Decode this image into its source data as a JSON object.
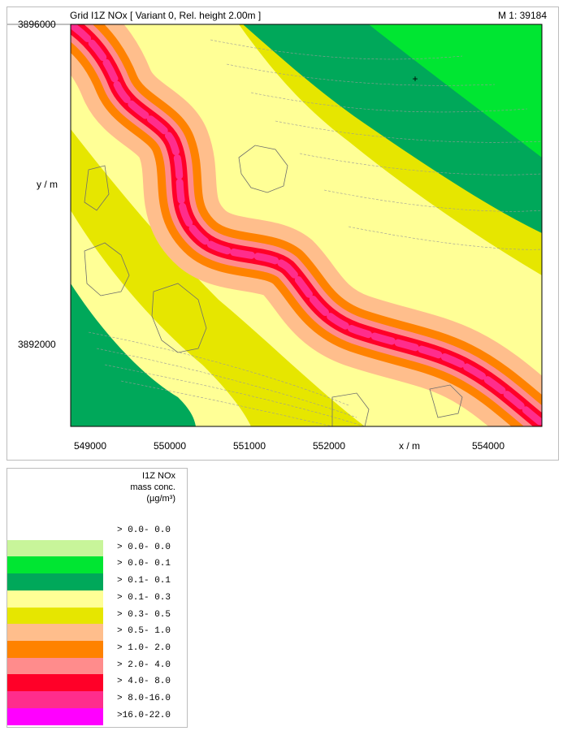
{
  "map": {
    "title": "Grid I1Z NOx  [ Variant 0, Rel. height  2.00m ]",
    "scale": "M 1:  39184",
    "x_ticks": [
      "549000",
      "550000",
      "551000",
      "552000",
      "554000"
    ],
    "x_axis_label": "x / m",
    "y_ticks": [
      "3896000",
      "3892000"
    ],
    "y_axis_label": "y / m"
  },
  "legend": {
    "title_lines": [
      "I1Z NOx",
      "mass conc.",
      "(µg/m³)"
    ],
    "classes": [
      {
        "label": "> 0.0- 0.0",
        "color": null
      },
      {
        "label": "> 0.0- 0.0",
        "color": "#c8f59a"
      },
      {
        "label": "> 0.0- 0.1",
        "color": "#00e632"
      },
      {
        "label": "> 0.1- 0.1",
        "color": "#00a85a"
      },
      {
        "label": "> 0.1- 0.3",
        "color": "#ffff96"
      },
      {
        "label": "> 0.3- 0.5",
        "color": "#e6e600"
      },
      {
        "label": "> 0.5- 1.0",
        "color": "#ffbe8c"
      },
      {
        "label": "> 1.0- 2.0",
        "color": "#ff8200"
      },
      {
        "label": "> 2.0- 4.0",
        "color": "#ff8c8c"
      },
      {
        "label": "> 4.0- 8.0",
        "color": "#ff0028"
      },
      {
        "label": "> 8.0-16.0",
        "color": "#ff2d8c"
      },
      {
        "label": ">16.0-22.0",
        "color": "#ff00ff"
      }
    ]
  }
}
